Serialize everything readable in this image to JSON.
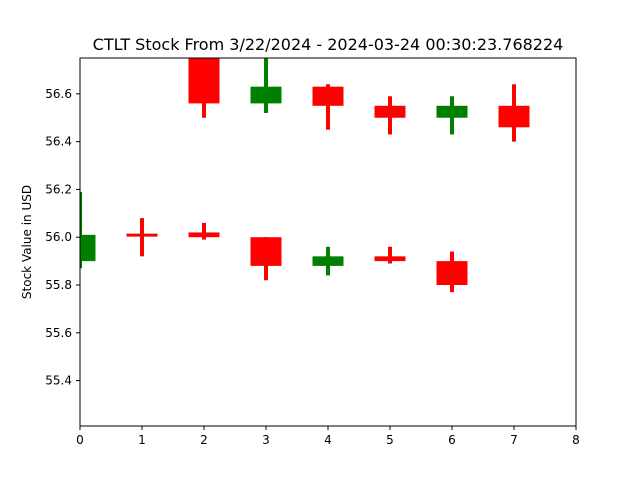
{
  "chart_data": {
    "type": "candlestick",
    "title": "CTLT Stock From 3/22/2024 - 2024-03-24 00:30:23.768224",
    "xlabel": "",
    "ylabel": "Stock Value in USD",
    "xlim": [
      0,
      8
    ],
    "ylim": [
      55.21,
      56.75
    ],
    "x_ticks": [
      "0",
      "1",
      "2",
      "3",
      "4",
      "5",
      "6",
      "7",
      "8"
    ],
    "y_ticks": [
      "55.4",
      "55.6",
      "55.8",
      "56.0",
      "56.2",
      "56.4",
      "56.6"
    ],
    "grid": false,
    "colors": {
      "up": "#008000",
      "down": "#ff0000"
    },
    "candles": [
      {
        "x": 0,
        "open": 55.9,
        "close": 56.01,
        "low": 55.87,
        "high": 56.19,
        "dir": "up"
      },
      {
        "x": 1,
        "open": 56.015,
        "close": 56.015,
        "low": 55.92,
        "high": 56.08,
        "dir": "down"
      },
      {
        "x": 2,
        "open": 56.75,
        "close": 56.56,
        "low": 56.5,
        "high": 56.75,
        "dir": "down"
      },
      {
        "x": 3,
        "open": 56.56,
        "close": 56.63,
        "low": 56.52,
        "high": 56.75,
        "dir": "up"
      },
      {
        "x": 4,
        "open": 56.63,
        "close": 56.55,
        "low": 56.45,
        "high": 56.64,
        "dir": "down"
      },
      {
        "x": 5,
        "open": 56.55,
        "close": 56.5,
        "low": 56.43,
        "high": 56.59,
        "dir": "down"
      },
      {
        "x": 6,
        "open": 56.5,
        "close": 56.55,
        "low": 56.43,
        "high": 56.59,
        "dir": "up"
      },
      {
        "x": 7,
        "open": 56.55,
        "close": 56.46,
        "low": 56.4,
        "high": 56.64,
        "dir": "down"
      },
      {
        "x": 2,
        "open": 56.02,
        "close": 56.0,
        "low": 55.99,
        "high": 56.06,
        "dir": "down"
      },
      {
        "x": 3,
        "open": 56.0,
        "close": 55.88,
        "low": 55.82,
        "high": 56.0,
        "dir": "down"
      },
      {
        "x": 4,
        "open": 55.88,
        "close": 55.92,
        "low": 55.84,
        "high": 55.96,
        "dir": "up"
      },
      {
        "x": 5,
        "open": 55.92,
        "close": 55.9,
        "low": 55.89,
        "high": 55.96,
        "dir": "down"
      },
      {
        "x": 6,
        "open": 55.9,
        "close": 55.8,
        "low": 55.77,
        "high": 55.94,
        "dir": "down"
      }
    ]
  }
}
